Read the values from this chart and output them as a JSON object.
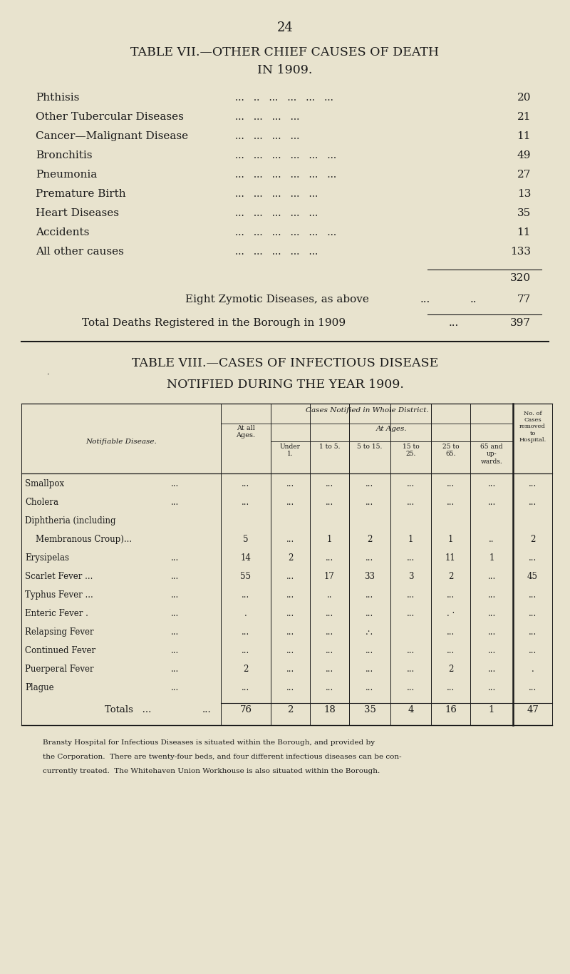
{
  "bg_color": "#e8e3ce",
  "text_color": "#1a1a1a",
  "page_number": "24",
  "table7_title1": "TABLE VII.—OTHER CHIEF CAUSES OF DEATH",
  "table7_title2": "IN 1909.",
  "table7_rows": [
    [
      "Phthisis",
      "...   ..   ...   ...   ...   ...",
      "20"
    ],
    [
      "Other Tubercular Diseases",
      "...   ...   ...   ...",
      "21"
    ],
    [
      "Cancer—Malignant Disease",
      "...   ...   ...   ...",
      "11"
    ],
    [
      "Bronchitis",
      "...   ...   ...   ...   ...   ...",
      "49"
    ],
    [
      "Pneumonia",
      "...   ...   ...   ...   ...   ...",
      "27"
    ],
    [
      "Premature Birth",
      "...   ...   ...   ...   ...",
      "13"
    ],
    [
      "Heart Diseases",
      "...   ...   ...   ...   ...",
      "35"
    ],
    [
      "Accidents",
      "...   ...   ...   ...   ...   ...",
      "11"
    ],
    [
      "All other causes",
      "...   ...   ...   ...   ...",
      "133"
    ]
  ],
  "subtotal": "320",
  "zymotic_label": "Eight Zymotic Diseases, as above",
  "zymotic_dots1": "...",
  "zymotic_dots2": "..",
  "zymotic_value": "77",
  "total_label": "Total Deaths Registered in the Borough in 1909",
  "total_dots": "...",
  "total_value": "397",
  "table8_title1": "TABLE VIII.—CASES OF INFECTIOUS DISEASE",
  "table8_title2": "NOTIFIED DURING THE YEAR 1909.",
  "col_header_main": "Cases Notified in Whole District.",
  "col_header_ages": "At Ages.",
  "col_notifiable": "Notifiable Disease.",
  "col_at_all": "At all\nAges.",
  "col_under1": "Under\n1.",
  "col_1to5": "1 to 5.",
  "col_5to15": "5 to 15.",
  "col_15to25": "15 to\n25.",
  "col_25to65": "25 to\n65.",
  "col_65up": "65 and\nup-\nwards.",
  "col_hospital": "No. of\nCases\nremoved\nto\nHospital.",
  "disease_rows": [
    [
      "Smallpox",
      "...",
      "...",
      "...",
      "...",
      "...",
      "...",
      "...",
      "...",
      "..."
    ],
    [
      "Cholera",
      "...",
      "...",
      "...",
      "...",
      "...",
      "...",
      "...",
      "...",
      "..."
    ],
    [
      "Diphtheria (including",
      "",
      "",
      "",
      "",
      "",
      "",
      "",
      "",
      ""
    ],
    [
      "    Membranous Croup)...",
      "",
      "5",
      "...",
      "1",
      "2",
      "1",
      "1",
      "..",
      "2"
    ],
    [
      "Erysipelas",
      "...",
      "14",
      "2",
      "...",
      "...",
      "...",
      "11",
      "1",
      "..."
    ],
    [
      "Scarlet Fever ...",
      "...",
      "55",
      "...",
      "17",
      "33",
      "3",
      "2",
      "...",
      "45"
    ],
    [
      "Typhus Fever ...",
      "...",
      "...",
      "...",
      "..",
      "...",
      "...",
      "...",
      "...",
      "..."
    ],
    [
      "Enteric Fever .",
      "...",
      ".",
      "...",
      "...",
      "...",
      "...",
      ". ·",
      "...",
      "..."
    ],
    [
      "Relapsing Fever",
      "...",
      "...",
      "...",
      "...",
      ".·.",
      " ",
      "...",
      "...",
      "..."
    ],
    [
      "Continued Fever",
      "...",
      "...",
      "...",
      "...",
      "...",
      "...",
      "...",
      "...",
      "..."
    ],
    [
      "Puerperal Fever",
      "...",
      "2",
      "...",
      "...",
      "...",
      "...",
      "2",
      "...",
      "."
    ],
    [
      "Plague",
      "...",
      "...",
      "...",
      "...",
      "...",
      "...",
      "...",
      "...",
      "..."
    ]
  ],
  "totals_row": [
    "76",
    "2",
    "18",
    "35",
    "4",
    "16",
    "1",
    "47"
  ],
  "footnote_lines": [
    "Bransty Hospital for Infectious Diseases is situated within the Borough, and provided by",
    "the Corporation.  There are twenty-four beds, and four different infectious diseases can be con-",
    "currently treated.  The Whitehaven Union Workhouse is also situated within the Borough."
  ]
}
